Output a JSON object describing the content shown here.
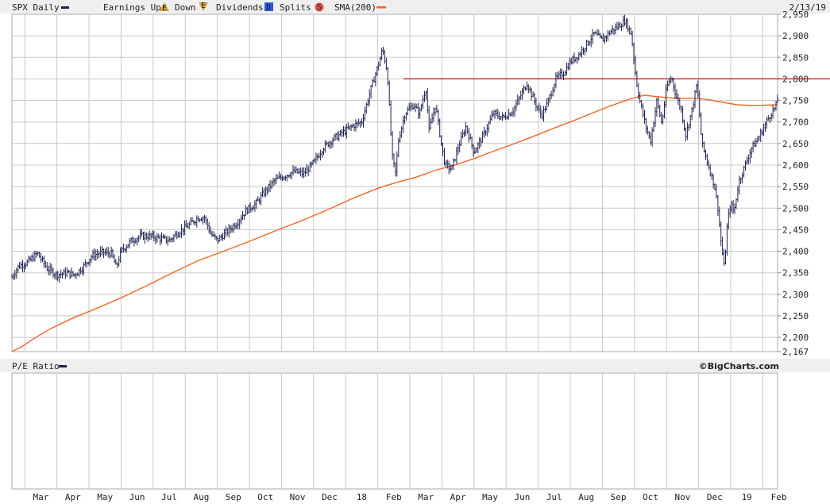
{
  "header": {
    "symbol_label": "SPX Daily",
    "earnings_label": "Earnings Up",
    "earnings_up_glyph": "E",
    "down_label": "Down",
    "earnings_down_glyph": "E",
    "dividends_label": "Dividends",
    "dividends_glyph": "D",
    "splits_label": "Splits",
    "splits_glyph": "S",
    "sma_label": "SMA(200)",
    "date_label": "2/13/19"
  },
  "lower_panel": {
    "title": "P/E Ratio",
    "credit": "©BigCharts.com"
  },
  "colors": {
    "price": "#1e2350",
    "sma": "#f26522",
    "resistance": "#cc1111",
    "grid": "#c8c8c8",
    "earnings_marker": "#d9a441",
    "dividends_marker": "#2a5bd7",
    "splits_marker": "#d9534f"
  },
  "chart_data": {
    "type": "line",
    "title": "SPX Daily",
    "y_axis": {
      "min": 2167,
      "max": 2950,
      "ticks": [
        "2,950",
        "2,900",
        "2,850",
        "2,800",
        "2,750",
        "2,700",
        "2,650",
        "2,600",
        "2,550",
        "2,500",
        "2,450",
        "2,400",
        "2,350",
        "2,300",
        "2,250",
        "2,200",
        "2,167"
      ],
      "tick_values": [
        2950,
        2900,
        2850,
        2800,
        2750,
        2700,
        2650,
        2600,
        2550,
        2500,
        2450,
        2400,
        2350,
        2300,
        2250,
        2200,
        2167
      ],
      "side": "right"
    },
    "x_axis": {
      "labels": [
        "Mar",
        "Apr",
        "May",
        "Jun",
        "Jul",
        "Aug",
        "Sep",
        "Oct",
        "Nov",
        "Dec",
        "18",
        "Feb",
        "Mar",
        "Apr",
        "May",
        "Jun",
        "Jul",
        "Aug",
        "Sep",
        "Oct",
        "Nov",
        "Dec",
        "19",
        "Feb"
      ],
      "label_months": [
        2,
        3,
        4,
        5,
        6,
        7,
        8,
        9,
        10,
        11,
        12,
        13,
        14,
        15,
        16,
        17,
        18,
        19,
        20,
        21,
        22,
        23,
        24,
        25
      ],
      "month_range": [
        1.6,
        25.46
      ]
    },
    "grid": true,
    "series": [
      {
        "name": "SPX Daily",
        "style": "ohlc-line",
        "points": [
          [
            1.6,
            2340
          ],
          [
            1.8,
            2365
          ],
          [
            2.1,
            2375
          ],
          [
            2.4,
            2395
          ],
          [
            2.7,
            2360
          ],
          [
            3.0,
            2345
          ],
          [
            3.3,
            2350
          ],
          [
            3.55,
            2345
          ],
          [
            3.8,
            2362
          ],
          [
            4.1,
            2390
          ],
          [
            4.4,
            2397
          ],
          [
            4.7,
            2395
          ],
          [
            4.85,
            2362
          ],
          [
            5.0,
            2400
          ],
          [
            5.3,
            2423
          ],
          [
            5.6,
            2435
          ],
          [
            5.9,
            2435
          ],
          [
            6.2,
            2430
          ],
          [
            6.5,
            2425
          ],
          [
            6.8,
            2445
          ],
          [
            7.1,
            2460
          ],
          [
            7.4,
            2478
          ],
          [
            7.6,
            2478
          ],
          [
            7.8,
            2440
          ],
          [
            8.0,
            2425
          ],
          [
            8.3,
            2445
          ],
          [
            8.6,
            2465
          ],
          [
            8.9,
            2495
          ],
          [
            9.2,
            2510
          ],
          [
            9.5,
            2540
          ],
          [
            9.8,
            2565
          ],
          [
            10.1,
            2575
          ],
          [
            10.4,
            2585
          ],
          [
            10.7,
            2580
          ],
          [
            11.0,
            2605
          ],
          [
            11.3,
            2640
          ],
          [
            11.6,
            2660
          ],
          [
            11.9,
            2675
          ],
          [
            12.2,
            2690
          ],
          [
            12.5,
            2700
          ],
          [
            12.8,
            2780
          ],
          [
            13.05,
            2840
          ],
          [
            13.15,
            2870
          ],
          [
            13.3,
            2815
          ],
          [
            13.45,
            2620
          ],
          [
            13.55,
            2580
          ],
          [
            13.65,
            2660
          ],
          [
            13.85,
            2720
          ],
          [
            14.1,
            2740
          ],
          [
            14.3,
            2720
          ],
          [
            14.5,
            2780
          ],
          [
            14.6,
            2680
          ],
          [
            14.8,
            2740
          ],
          [
            15.0,
            2640
          ],
          [
            15.1,
            2600
          ],
          [
            15.3,
            2590
          ],
          [
            15.5,
            2640
          ],
          [
            15.75,
            2690
          ],
          [
            16.0,
            2630
          ],
          [
            16.3,
            2670
          ],
          [
            16.6,
            2720
          ],
          [
            16.9,
            2710
          ],
          [
            17.2,
            2725
          ],
          [
            17.45,
            2760
          ],
          [
            17.65,
            2790
          ],
          [
            17.9,
            2745
          ],
          [
            18.1,
            2715
          ],
          [
            18.3,
            2745
          ],
          [
            18.55,
            2800
          ],
          [
            18.8,
            2815
          ],
          [
            19.0,
            2840
          ],
          [
            19.25,
            2855
          ],
          [
            19.5,
            2880
          ],
          [
            19.75,
            2905
          ],
          [
            20.0,
            2890
          ],
          [
            20.25,
            2910
          ],
          [
            20.45,
            2920
          ],
          [
            20.7,
            2935
          ],
          [
            20.9,
            2905
          ],
          [
            21.05,
            2800
          ],
          [
            21.15,
            2755
          ],
          [
            21.35,
            2690
          ],
          [
            21.5,
            2655
          ],
          [
            21.7,
            2750
          ],
          [
            21.85,
            2695
          ],
          [
            22.0,
            2780
          ],
          [
            22.15,
            2805
          ],
          [
            22.3,
            2760
          ],
          [
            22.45,
            2730
          ],
          [
            22.6,
            2670
          ],
          [
            22.8,
            2730
          ],
          [
            22.95,
            2790
          ],
          [
            23.1,
            2650
          ],
          [
            23.3,
            2600
          ],
          [
            23.5,
            2550
          ],
          [
            23.6,
            2500
          ],
          [
            23.7,
            2420
          ],
          [
            23.8,
            2360
          ],
          [
            23.9,
            2470
          ],
          [
            24.0,
            2510
          ],
          [
            24.1,
            2490
          ],
          [
            24.25,
            2560
          ],
          [
            24.45,
            2600
          ],
          [
            24.65,
            2640
          ],
          [
            24.85,
            2660
          ],
          [
            25.05,
            2690
          ],
          [
            25.25,
            2720
          ],
          [
            25.4,
            2735
          ],
          [
            25.46,
            2755
          ]
        ]
      },
      {
        "name": "SMA(200)",
        "style": "line",
        "points": [
          [
            1.6,
            2167
          ],
          [
            1.9,
            2178
          ],
          [
            2.3,
            2198
          ],
          [
            2.8,
            2220
          ],
          [
            3.5,
            2245
          ],
          [
            4.2,
            2266
          ],
          [
            5.0,
            2292
          ],
          [
            5.8,
            2320
          ],
          [
            6.6,
            2350
          ],
          [
            7.4,
            2378
          ],
          [
            8.2,
            2400
          ],
          [
            9.0,
            2423
          ],
          [
            9.8,
            2447
          ],
          [
            10.6,
            2470
          ],
          [
            11.4,
            2495
          ],
          [
            12.2,
            2522
          ],
          [
            13.0,
            2546
          ],
          [
            13.6,
            2560
          ],
          [
            14.2,
            2572
          ],
          [
            14.8,
            2588
          ],
          [
            15.4,
            2600
          ],
          [
            16.0,
            2615
          ],
          [
            16.6,
            2632
          ],
          [
            17.2,
            2648
          ],
          [
            17.8,
            2665
          ],
          [
            18.4,
            2683
          ],
          [
            19.0,
            2700
          ],
          [
            19.6,
            2718
          ],
          [
            20.2,
            2736
          ],
          [
            20.8,
            2752
          ],
          [
            21.3,
            2762
          ],
          [
            21.8,
            2758
          ],
          [
            22.3,
            2755
          ],
          [
            22.8,
            2755
          ],
          [
            23.3,
            2752
          ],
          [
            23.8,
            2745
          ],
          [
            24.2,
            2740
          ],
          [
            24.7,
            2738
          ],
          [
            25.46,
            2740
          ]
        ]
      }
    ],
    "annotations": [
      {
        "type": "horizontal_line",
        "y": 2800,
        "x_from": 13.8,
        "x_to": 25.46,
        "color": "#cc1111"
      }
    ]
  }
}
